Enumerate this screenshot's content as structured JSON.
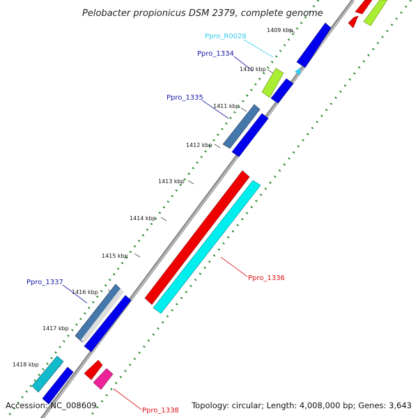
{
  "title": "Pelobacter propionicus DSM 2379, complete genome",
  "footer": {
    "accession": "Accession: NC_008609",
    "summary": "Topology: circular; Length: 4,008,000 bp; Genes: 3,643"
  },
  "ticks": [
    "1409 kbp",
    "1410 kbp",
    "1411 kbp",
    "1412 kbp",
    "1413 kbp",
    "1414 kbp",
    "1415 kbp",
    "1416 kbp",
    "1417 kbp",
    "1418 kbp"
  ],
  "genes": [
    {
      "name": "Ppro_R0028",
      "color": "#33ccee"
    },
    {
      "name": "Ppro_1334",
      "color": "#1a1aaa"
    },
    {
      "name": "Ppro_1335",
      "color": "#1a1aaa"
    },
    {
      "name": "Ppro_1336",
      "color": "#dd1111"
    },
    {
      "name": "Ppro_1337",
      "color": "#1a1aaa"
    },
    {
      "name": "Ppro_1338",
      "color": "#dd1111"
    }
  ],
  "colors": {
    "backbone": "#888888",
    "tick_mark": "#228822",
    "cds_forward": "#0000ee",
    "cds_reverse": "#ee0000",
    "rna_gene": "#00eeee",
    "misc_feature": "#aaee33",
    "pink_feature": "#ee2299"
  }
}
